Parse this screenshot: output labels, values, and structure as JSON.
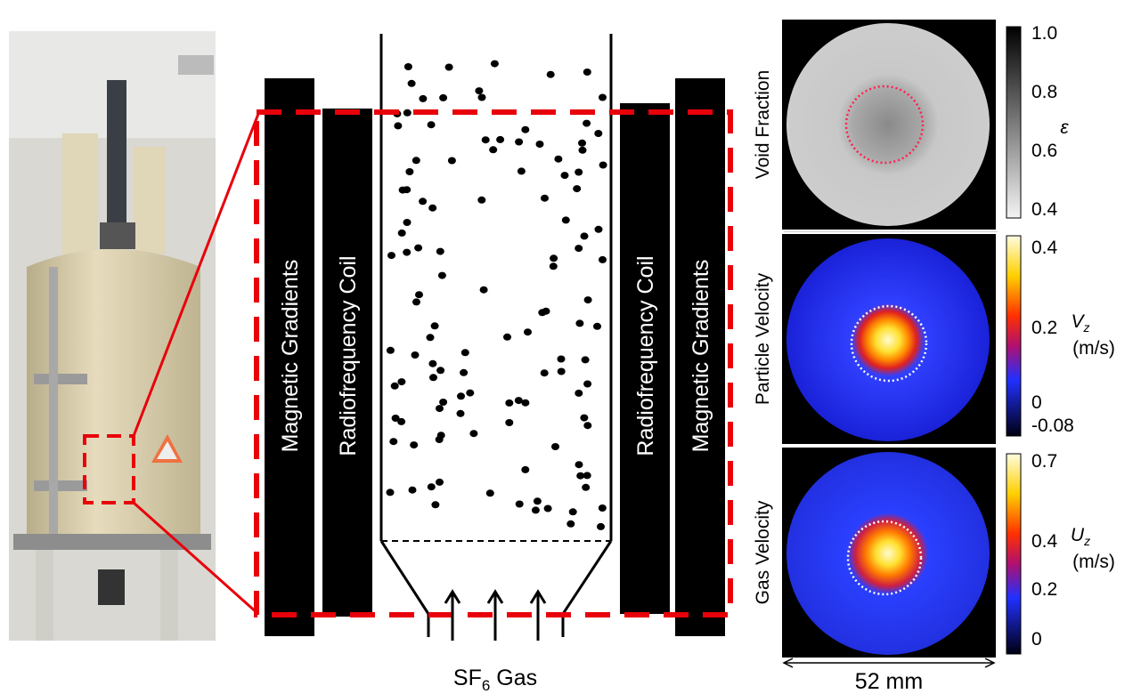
{
  "diagram": {
    "left_labels": [
      "Magnetic Gradients",
      "Radiofrequency Coil"
    ],
    "right_labels": [
      "Radiofrequency Coil",
      "Magnetic Gradients"
    ],
    "gas_label": {
      "text": "SF",
      "subscript": "6",
      "suffix": " Gas"
    }
  },
  "panels": [
    {
      "label": "Void Fraction",
      "colorbar": {
        "ticks": [
          "1.0",
          "0.8",
          "0.6",
          "0.4"
        ],
        "symbol": "ε"
      }
    },
    {
      "label": "Particle Velocity",
      "colorbar": {
        "ticks": [
          "0.4",
          "0.2",
          "0",
          "-0.08"
        ],
        "symbol": "V",
        "subscript": "z",
        "unit": "(m/s)"
      }
    },
    {
      "label": "Gas Velocity",
      "colorbar": {
        "ticks": [
          "0.7",
          "0.4",
          "0.2",
          "0"
        ],
        "symbol": "U",
        "subscript": "z",
        "unit": "(m/s)"
      }
    }
  ],
  "scale_label": "52 mm"
}
